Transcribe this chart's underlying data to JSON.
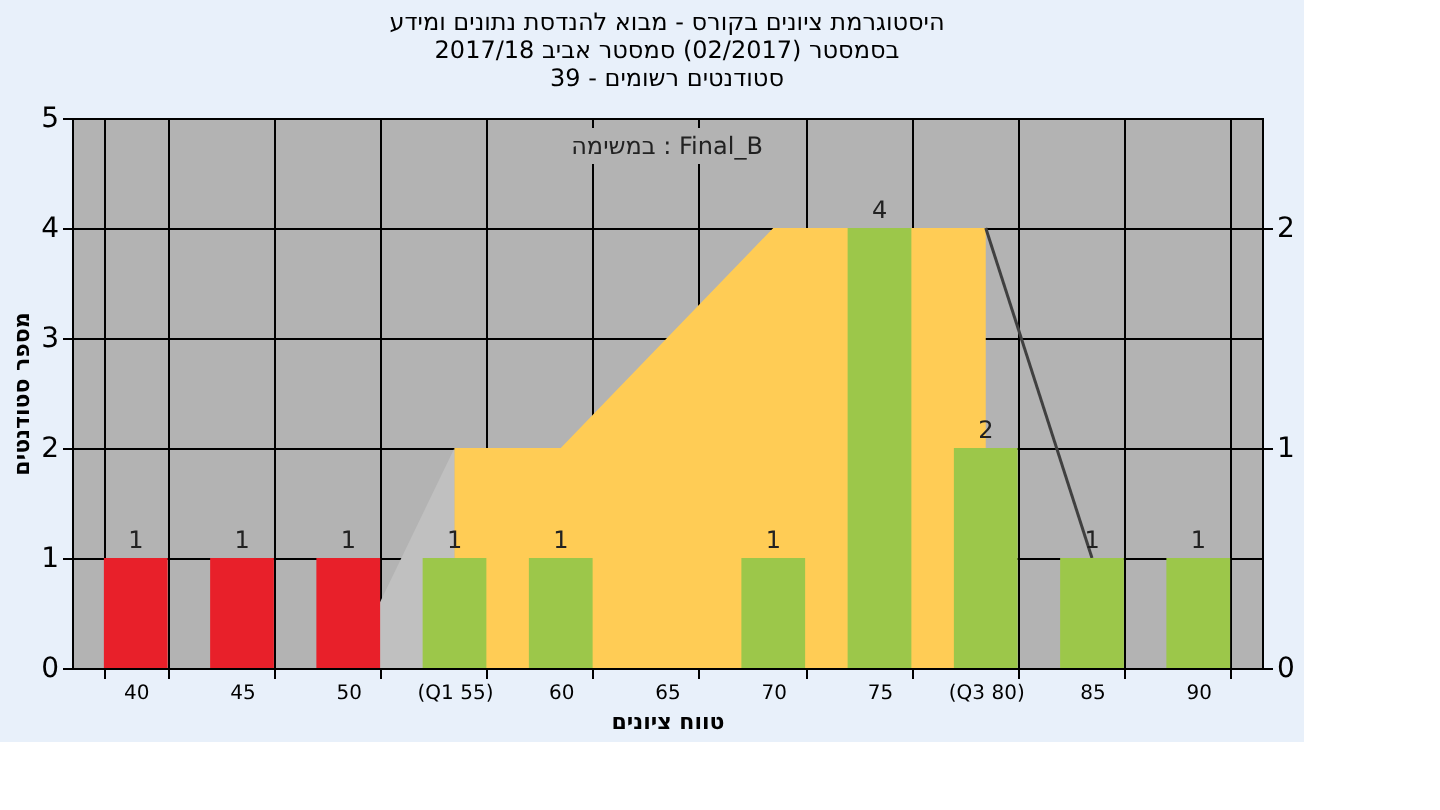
{
  "chart_data": {
    "type": "bar",
    "title": "היסטוגרמת ציונים בקורס - מבוא להנדסת נתונים ומידע\nבסמסטר (02/2017) סמסטר אביב 2017/18\nסטודנטים רשומים - 39",
    "xlabel": "טווח ציונים",
    "ylabel": "מספר סטודנטים",
    "categories": [
      "40",
      "45",
      "50",
      "(Q1 55)",
      "60",
      "65",
      "70",
      "75",
      "(Q3 80)",
      "85",
      "90"
    ],
    "series": [
      {
        "type": "area",
        "axis": "y2",
        "color": "#c0c0c0",
        "values": [
          null,
          null,
          0,
          1,
          null,
          null,
          null,
          null,
          null,
          null,
          null
        ]
      },
      {
        "type": "area",
        "axis": "y2",
        "color": "#ffcc55",
        "values": [
          null,
          null,
          null,
          1,
          1,
          1.5,
          2,
          2,
          2,
          null,
          null
        ]
      },
      {
        "type": "line",
        "axis": "y2",
        "color": "#404040",
        "values": [
          null,
          null,
          null,
          null,
          null,
          null,
          null,
          null,
          2,
          0.5,
          null
        ]
      },
      {
        "values": [
          1,
          1,
          1,
          1,
          1,
          0,
          1,
          4,
          2,
          1,
          1
        ],
        "colors": [
          "#e8202a",
          "#e8202a",
          "#e8202a",
          "#9cc74a",
          "#9cc74a",
          "#9cc74a",
          "#9cc74a",
          "#9cc74a",
          "#9cc74a",
          "#9cc74a",
          "#9cc74a"
        ],
        "value_labels": [
          "1",
          "1",
          "1",
          "1",
          "1",
          null,
          "1",
          "4",
          "2",
          "1",
          "1"
        ]
      }
    ],
    "ylim": [
      0,
      5
    ],
    "yticks": [
      0,
      1,
      2,
      3,
      4,
      5
    ],
    "y2lim": [
      0,
      2.5
    ],
    "y2ticks": [
      0,
      1,
      2
    ],
    "grid": true,
    "annotations": [
      "במשימה : Final_B"
    ]
  }
}
